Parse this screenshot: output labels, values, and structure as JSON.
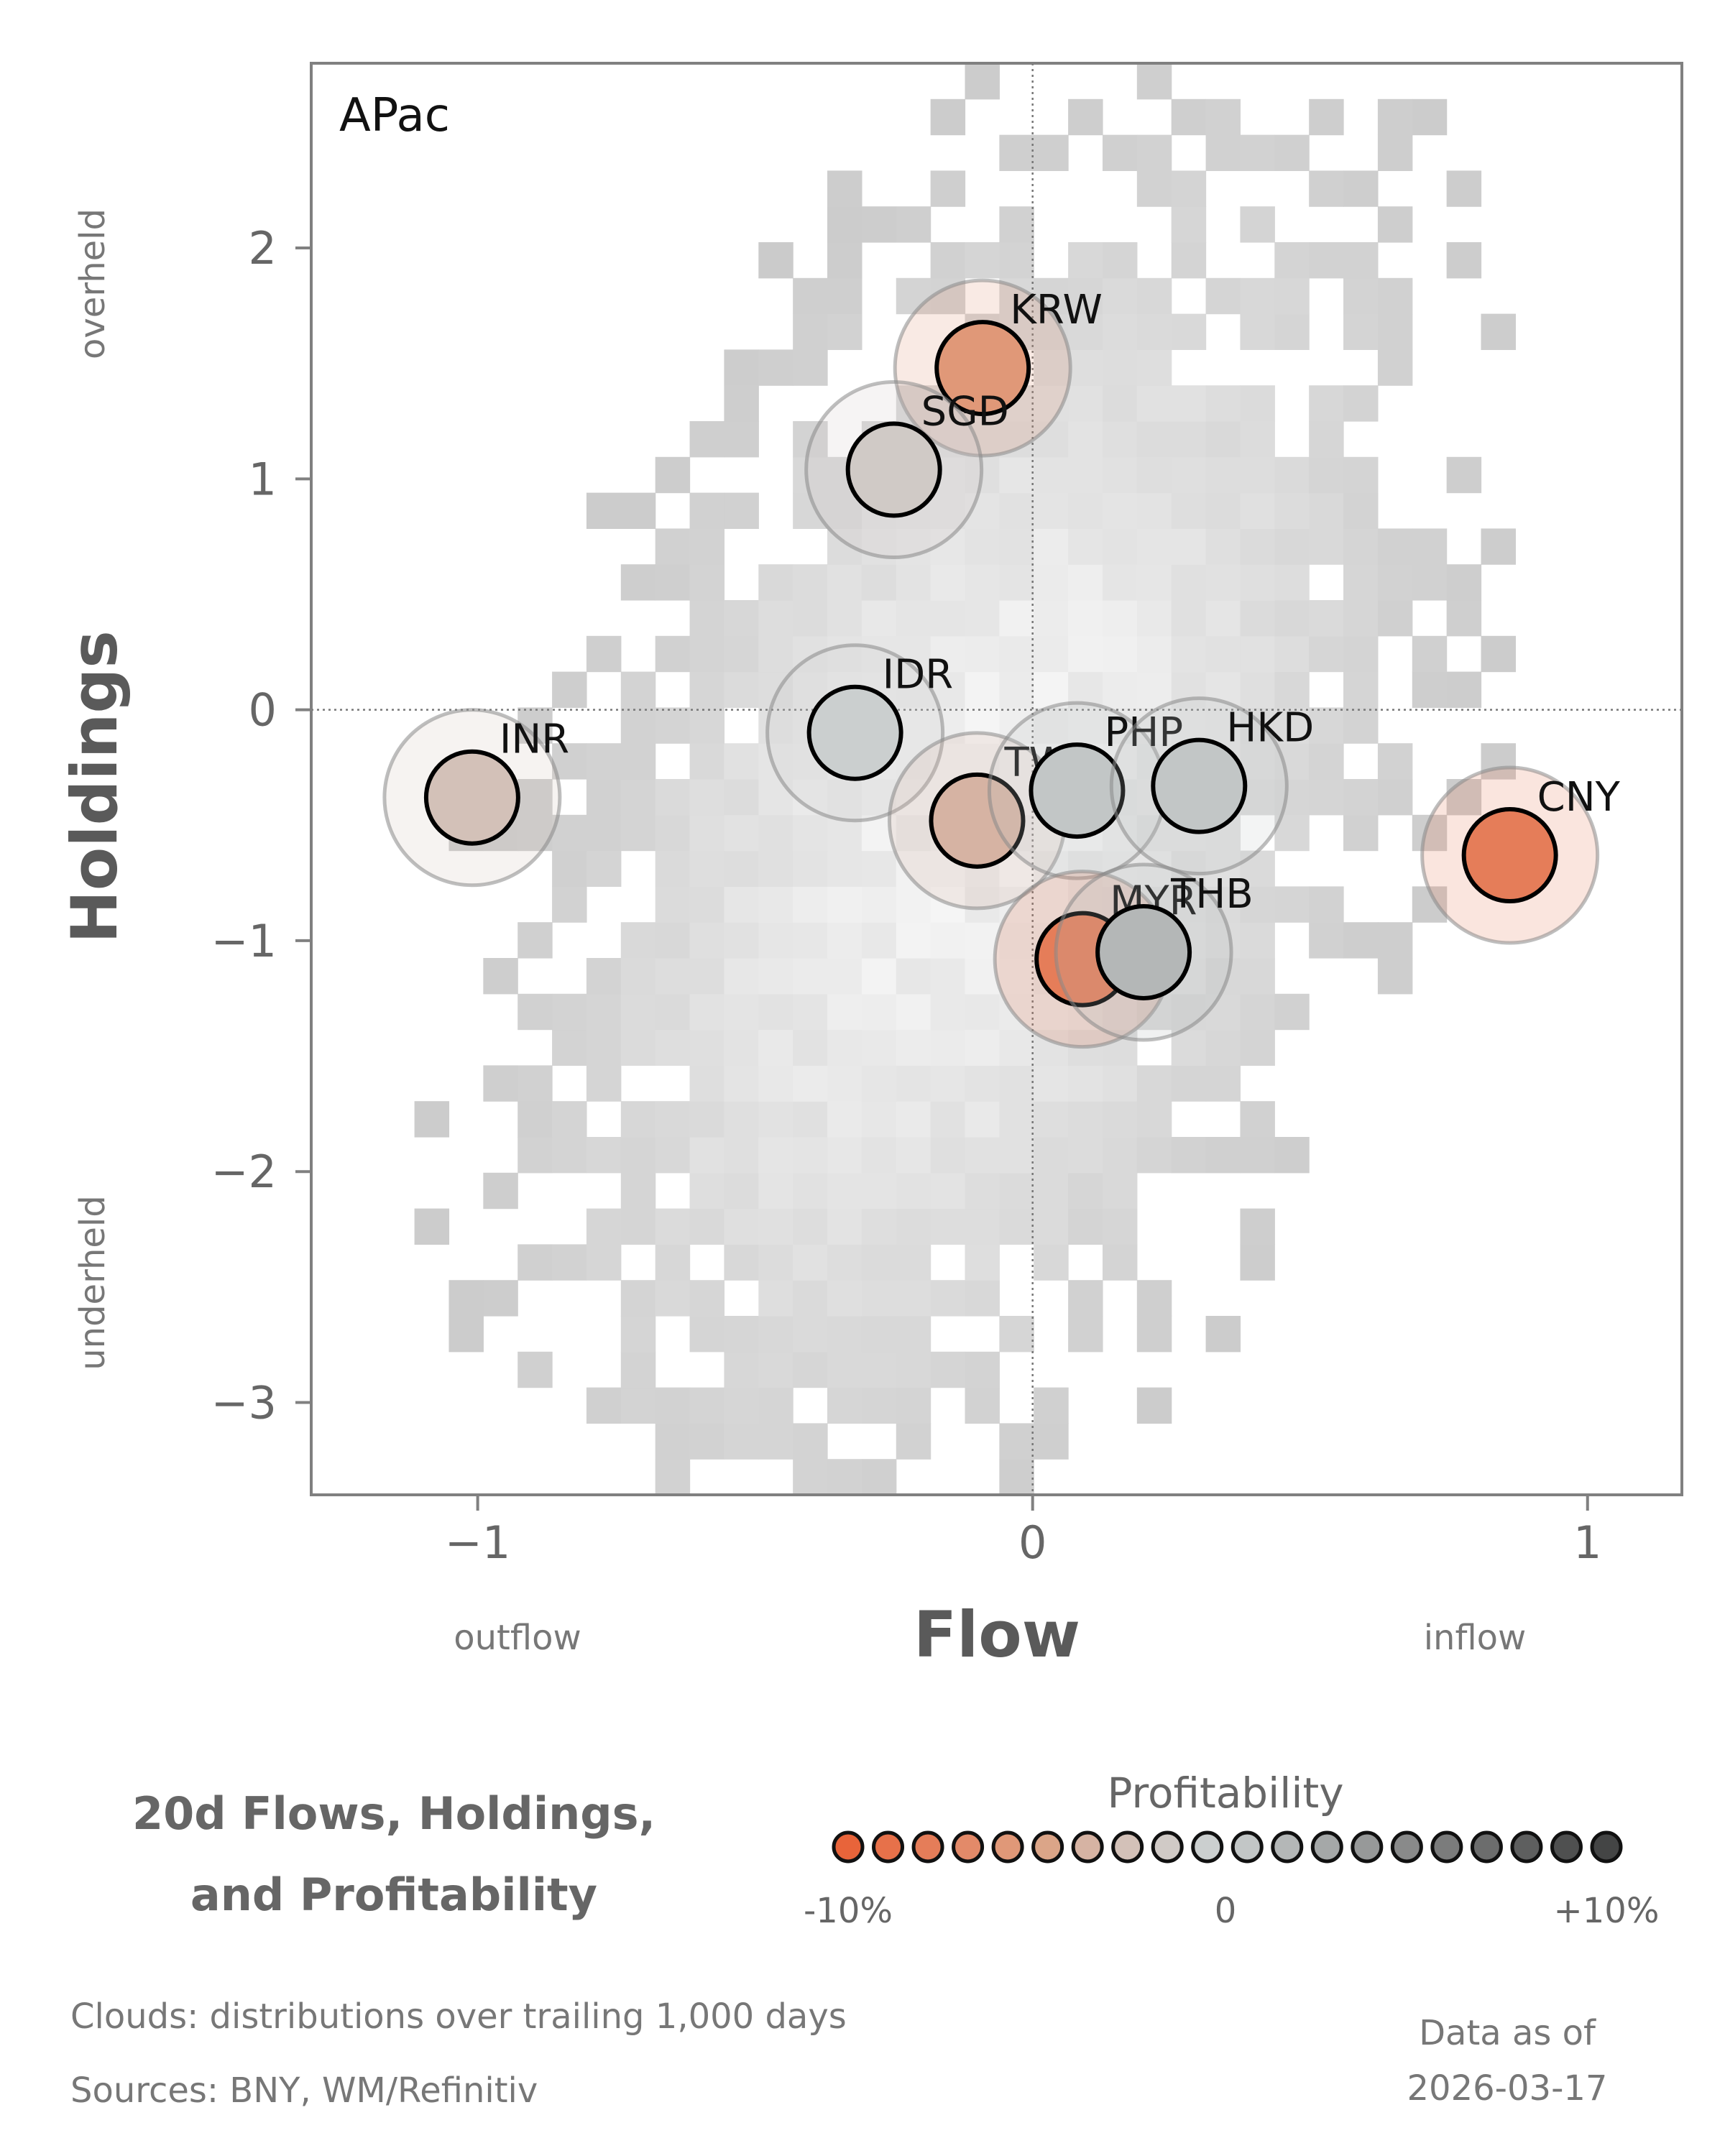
{
  "chart_data": {
    "type": "scatter",
    "panel_label": "APac",
    "xlabel": "Flow",
    "ylabel": "Holdings",
    "x_hint_left": "outflow",
    "x_hint_right": "inflow",
    "y_hint_top": "overheld",
    "y_hint_bottom": "underheld",
    "xlim": [
      -1.3,
      1.17
    ],
    "ylim": [
      -3.4,
      2.8
    ],
    "x_ticks": [
      -1,
      0,
      1
    ],
    "x_tick_labels": [
      "−1",
      "0",
      "1"
    ],
    "y_ticks": [
      2,
      1,
      0,
      -1,
      -2,
      -3
    ],
    "y_tick_labels": [
      "2",
      "1",
      "0",
      "−1",
      "−2",
      "−3"
    ],
    "reference_lines": {
      "x": 0,
      "y": 0
    },
    "background": "2D histogram density clouds (grey) of flow vs holdings",
    "points": [
      {
        "label": "KRW",
        "x": -0.09,
        "y": 1.48,
        "profitability": -5.5
      },
      {
        "label": "SGD",
        "x": -0.25,
        "y": 1.04,
        "profitability": -1.2
      },
      {
        "label": "IDR",
        "x": -0.32,
        "y": -0.1,
        "profitability": -1.0
      },
      {
        "label": "INR",
        "x": -1.01,
        "y": -0.38,
        "profitability": -2.5
      },
      {
        "label": "TWD",
        "x": -0.1,
        "y": -0.48,
        "profitability": -4.0
      },
      {
        "label": "PHP",
        "x": 0.08,
        "y": -0.35,
        "profitability": 1.0
      },
      {
        "label": "HKD",
        "x": 0.3,
        "y": -0.33,
        "profitability": 1.0
      },
      {
        "label": "CNY",
        "x": 0.86,
        "y": -0.63,
        "profitability": -7.5
      },
      {
        "label": "MYR",
        "x": 0.09,
        "y": -1.08,
        "profitability": -8.0
      },
      {
        "label": "THB",
        "x": 0.2,
        "y": -1.05,
        "profitability": 1.2
      }
    ]
  },
  "legend": {
    "title": "Profitability",
    "tick_min": "-10%",
    "tick_mid": "0",
    "tick_max": "+10%",
    "colors": [
      "#e8643a",
      "#e7714a",
      "#e57d59",
      "#e38a69",
      "#e09878",
      "#dba588",
      "#d6b3a3",
      "#d3c1b8",
      "#d0cac6",
      "#cbcfcf",
      "#c2c6c6",
      "#b4b7b7",
      "#a5a8a8",
      "#979999",
      "#898a8a",
      "#7b7c7c",
      "#6c6d6d",
      "#5e5f5f",
      "#4f5050",
      "#444545"
    ]
  },
  "caption": {
    "line1": "20d Flows, Holdings,",
    "line2": "and Profitability"
  },
  "footer": {
    "clouds": "Clouds:  distributions over trailing 1,000 days",
    "sources": "Sources:  BNY, WM/Refinitiv",
    "asof_label": "Data as of",
    "asof_date": "2026-03-17"
  }
}
